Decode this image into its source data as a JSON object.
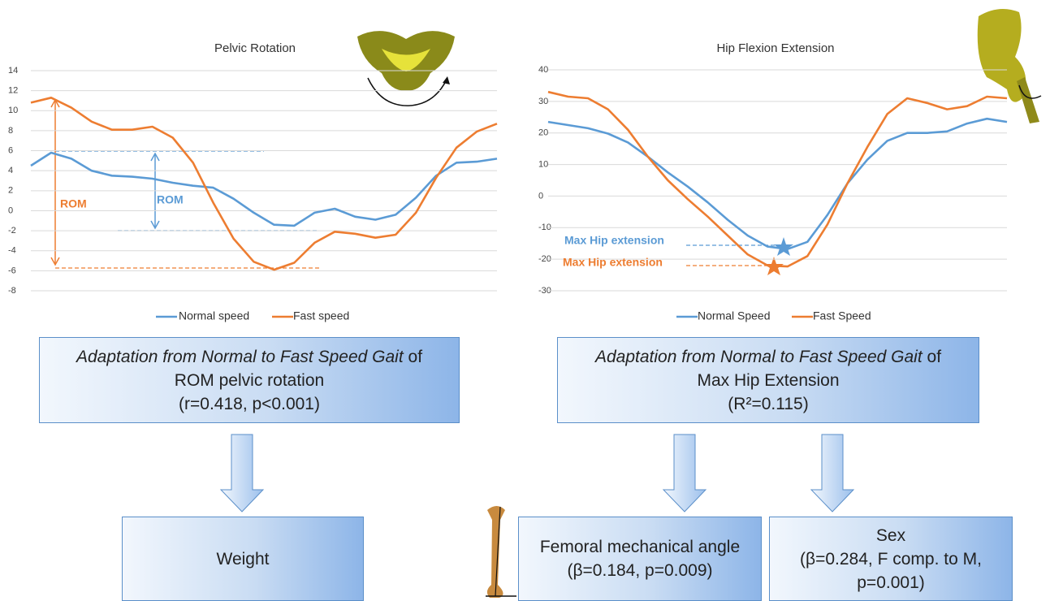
{
  "chart_data": [
    {
      "type": "line",
      "title": "Pelvic Rotation",
      "ylim": [
        -8,
        14
      ],
      "yticks": [
        -8,
        -6,
        -4,
        -2,
        0,
        2,
        4,
        6,
        8,
        10,
        12,
        14
      ],
      "grid": true,
      "series": [
        {
          "name": "Normal speed",
          "color": "#5b9bd5",
          "values": [
            4.5,
            5.8,
            5.2,
            4.0,
            3.5,
            3.4,
            3.2,
            2.8,
            2.5,
            2.3,
            1.2,
            -0.2,
            -1.4,
            -1.5,
            -0.2,
            0.2,
            -0.6,
            -0.9,
            -0.4,
            1.3,
            3.5,
            4.8,
            4.9,
            5.2
          ]
        },
        {
          "name": "Fast speed",
          "color": "#ed7d31",
          "values": [
            10.8,
            11.3,
            10.3,
            8.9,
            8.1,
            8.1,
            8.4,
            7.3,
            4.8,
            0.8,
            -2.8,
            -5.1,
            -5.9,
            -5.2,
            -3.2,
            -2.1,
            -2.3,
            -2.7,
            -2.4,
            -0.2,
            3.3,
            6.3,
            7.9,
            8.7
          ]
        }
      ],
      "annotations": [
        "ROM",
        "ROM"
      ]
    },
    {
      "type": "line",
      "title": "Hip Flexion Extension",
      "ylim": [
        -30,
        40
      ],
      "yticks": [
        -30,
        -20,
        -10,
        0,
        10,
        20,
        30,
        40
      ],
      "grid": true,
      "series": [
        {
          "name": "Normal Speed",
          "color": "#5b9bd5",
          "values": [
            23.5,
            22.5,
            21.5,
            19.8,
            17,
            12.5,
            7.5,
            3,
            -2,
            -7.5,
            -12.5,
            -16,
            -16.8,
            -14.5,
            -6,
            4,
            11.5,
            17.5,
            20,
            20,
            20.5,
            23,
            24.5,
            23.5
          ]
        },
        {
          "name": "Fast Speed",
          "color": "#ed7d31",
          "values": [
            33,
            31.5,
            31,
            27.5,
            21,
            12.5,
            5,
            -1,
            -6.5,
            -12.5,
            -18.5,
            -22,
            -22.3,
            -19,
            -9,
            4,
            15.5,
            26,
            31,
            29.5,
            27.5,
            28.5,
            31.5,
            31
          ]
        }
      ],
      "annotations": [
        "Max Hip extension",
        "Max Hip extension"
      ]
    }
  ],
  "boxes": [
    {
      "italic": "Adaptation from Normal to Fast Speed Gait",
      "text": "of",
      "lines": [
        "ROM pelvic rotation",
        "(r=0.418, p<0.001)"
      ]
    },
    {
      "italic": "Adaptation from Normal to Fast Speed Gait",
      "text": "of",
      "lines": [
        "Max Hip Extension",
        "(R²=0.115)"
      ]
    }
  ],
  "factors": [
    {
      "lines": [
        "Weight"
      ]
    },
    {
      "lines": [
        "Femoral mechanical angle",
        "(β=0.184, p=0.009)"
      ]
    },
    {
      "lines": [
        "Sex",
        "(β=0.284, F comp. to M,",
        "p=0.001)"
      ]
    }
  ]
}
